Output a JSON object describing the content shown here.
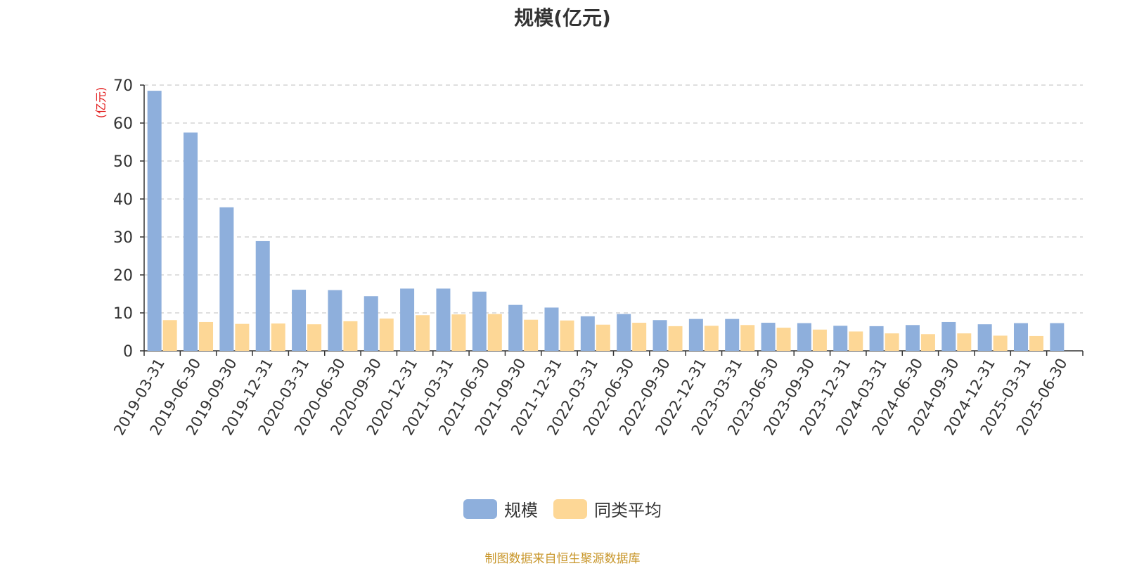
{
  "title": "规模(亿元)",
  "source_note": "制图数据来自恒生聚源数据库",
  "colors": {
    "scale": "#8eafdc",
    "avg": "#fdd796",
    "unit_label": "#e31e1e",
    "axis": "#333333",
    "grid": "#cccccc"
  },
  "chart_data": {
    "type": "bar",
    "title": "规模(亿元)",
    "ylabel": "(亿元)",
    "ylim": [
      0,
      70
    ],
    "yticks": [
      0,
      10,
      20,
      30,
      40,
      50,
      60,
      70
    ],
    "grid": true,
    "legend_position": "bottom-center",
    "categories": [
      "2019-03-31",
      "2019-06-30",
      "2019-09-30",
      "2019-12-31",
      "2020-03-31",
      "2020-06-30",
      "2020-09-30",
      "2020-12-31",
      "2021-03-31",
      "2021-06-30",
      "2021-09-30",
      "2021-12-31",
      "2022-03-31",
      "2022-06-30",
      "2022-09-30",
      "2022-12-31",
      "2023-03-31",
      "2023-06-30",
      "2023-09-30",
      "2023-12-31",
      "2024-03-31",
      "2024-06-30",
      "2024-09-30",
      "2024-12-31",
      "2025-03-31",
      "2025-06-30"
    ],
    "series": [
      {
        "name": "规模",
        "color": "#8eafdc",
        "values": [
          68.5,
          57.5,
          37.8,
          28.9,
          16.1,
          16.0,
          14.4,
          16.4,
          16.4,
          15.6,
          12.1,
          11.4,
          9.1,
          9.7,
          8.1,
          8.4,
          8.4,
          7.4,
          7.3,
          6.6,
          6.5,
          6.8,
          7.6,
          7.0,
          7.3,
          7.3
        ]
      },
      {
        "name": "同类平均",
        "color": "#fdd796",
        "values": [
          8.1,
          7.6,
          7.1,
          7.2,
          7.0,
          7.8,
          8.5,
          9.4,
          9.6,
          9.7,
          8.2,
          8.0,
          6.9,
          7.4,
          6.5,
          6.6,
          6.8,
          6.1,
          5.6,
          5.1,
          4.6,
          4.4,
          4.6,
          4.0,
          3.9,
          null
        ]
      }
    ]
  }
}
